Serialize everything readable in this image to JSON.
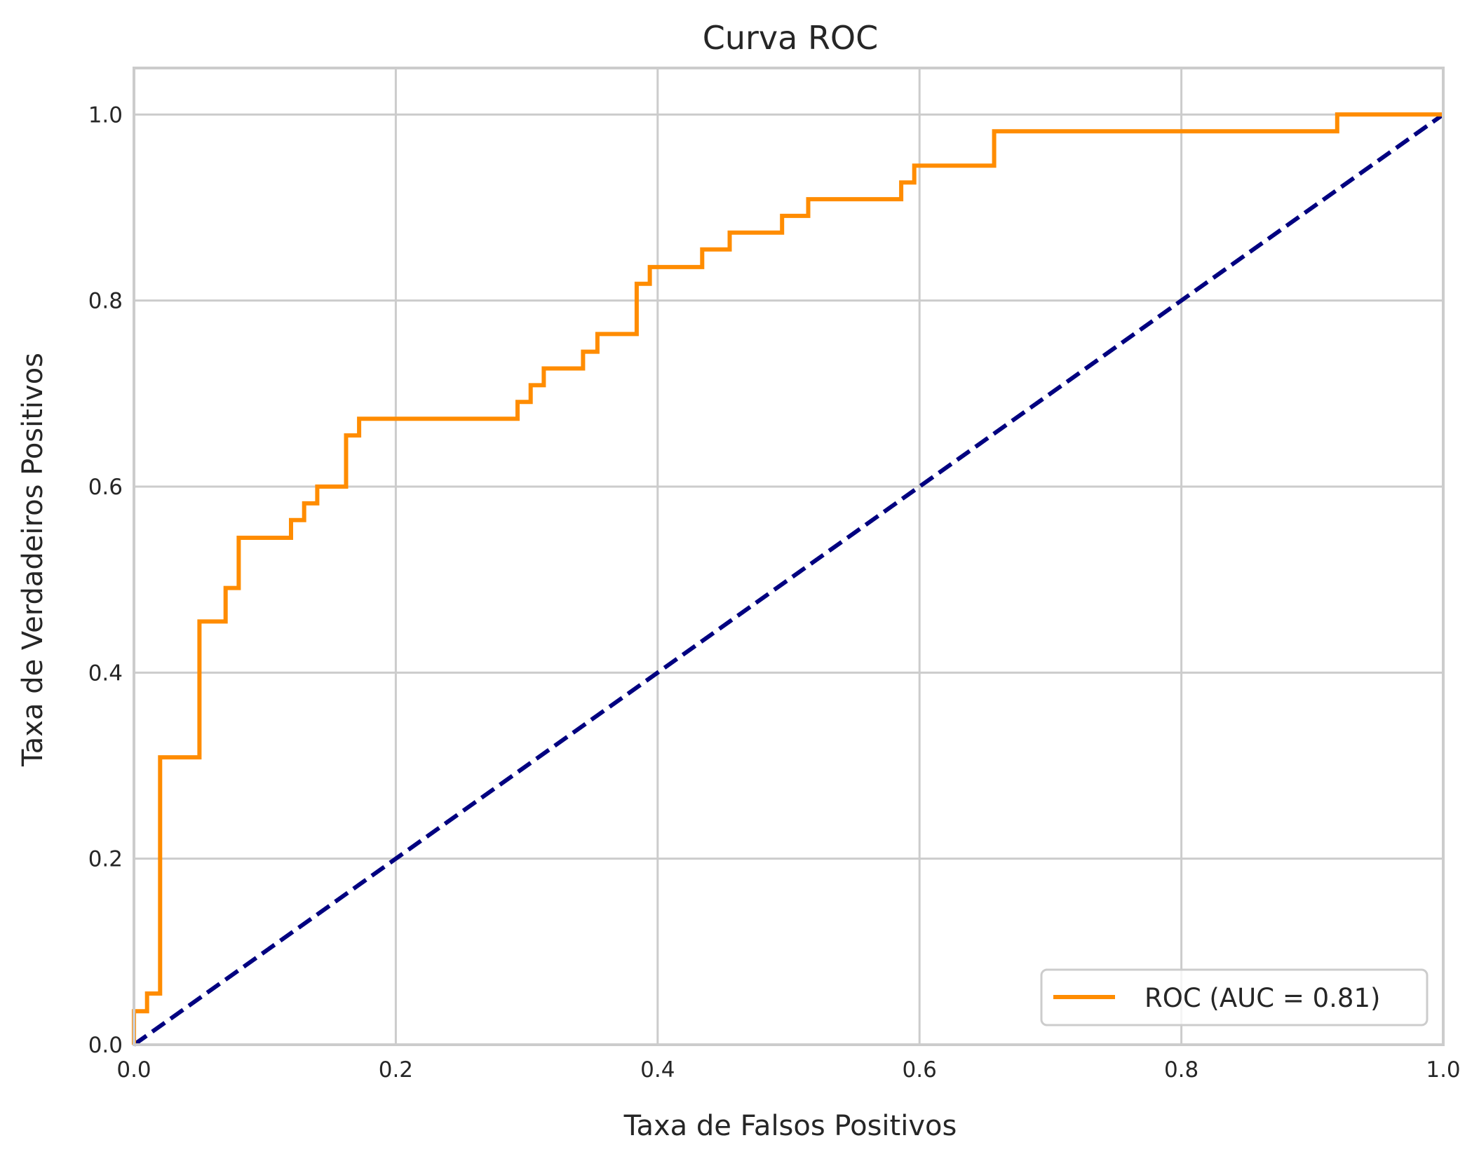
{
  "chart_data": {
    "type": "line",
    "title": "Curva ROC",
    "xlabel": "Taxa de Falsos Positivos",
    "ylabel": "Taxa de Verdadeiros Positivos",
    "xlim": [
      0.0,
      1.0
    ],
    "ylim": [
      0.0,
      1.05
    ],
    "xticks": [
      0.0,
      0.2,
      0.4,
      0.6,
      0.8,
      1.0
    ],
    "xtick_labels": [
      "0.0",
      "0.2",
      "0.4",
      "0.6",
      "0.8",
      "1.0"
    ],
    "yticks": [
      0.0,
      0.2,
      0.4,
      0.6,
      0.8,
      1.0
    ],
    "ytick_labels": [
      "0.0",
      "0.2",
      "0.4",
      "0.6",
      "0.8",
      "1.0"
    ],
    "grid": true,
    "legend_position": "lower-right",
    "series": [
      {
        "name": "ROC (AUC = 0.81)",
        "color": "#ff8c00",
        "style": "solid",
        "x": [
          0.0,
          0.0,
          0.01,
          0.01,
          0.02,
          0.02,
          0.05,
          0.05,
          0.07,
          0.07,
          0.08,
          0.08,
          0.12,
          0.12,
          0.13,
          0.13,
          0.14,
          0.14,
          0.162,
          0.162,
          0.172,
          0.172,
          0.293,
          0.293,
          0.303,
          0.303,
          0.313,
          0.313,
          0.343,
          0.343,
          0.354,
          0.354,
          0.384,
          0.384,
          0.394,
          0.394,
          0.434,
          0.434,
          0.455,
          0.455,
          0.495,
          0.495,
          0.515,
          0.515,
          0.586,
          0.586,
          0.596,
          0.596,
          0.657,
          0.657,
          0.919,
          0.919,
          1.0
        ],
        "y": [
          0.0,
          0.036,
          0.036,
          0.055,
          0.055,
          0.309,
          0.309,
          0.455,
          0.455,
          0.491,
          0.491,
          0.545,
          0.545,
          0.564,
          0.564,
          0.582,
          0.582,
          0.6,
          0.6,
          0.655,
          0.655,
          0.673,
          0.673,
          0.691,
          0.691,
          0.709,
          0.709,
          0.727,
          0.727,
          0.745,
          0.745,
          0.764,
          0.764,
          0.818,
          0.818,
          0.836,
          0.836,
          0.855,
          0.855,
          0.873,
          0.873,
          0.891,
          0.891,
          0.909,
          0.909,
          0.927,
          0.927,
          0.945,
          0.945,
          0.982,
          0.982,
          1.0,
          1.0
        ]
      },
      {
        "name": "",
        "color": "#000080",
        "style": "dashed",
        "x": [
          0.0,
          1.0
        ],
        "y": [
          0.0,
          1.0
        ]
      }
    ]
  }
}
